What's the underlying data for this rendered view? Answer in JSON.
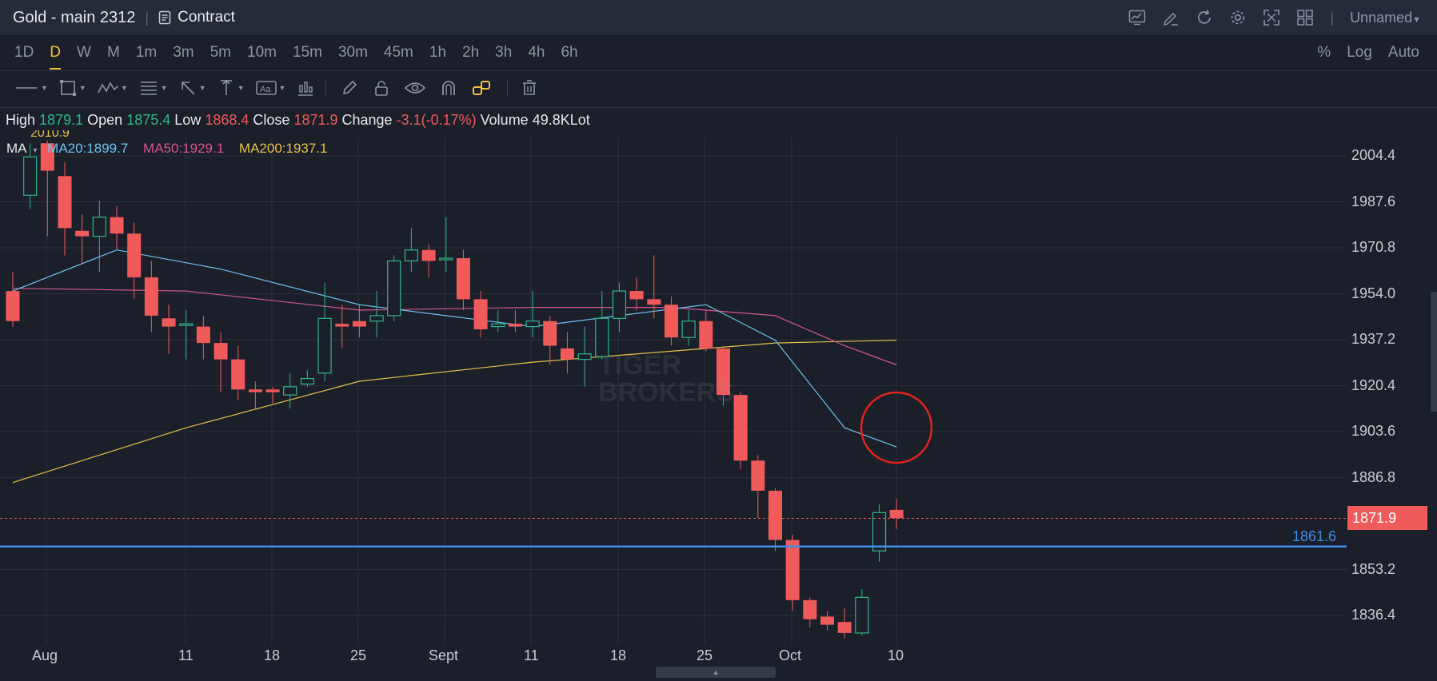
{
  "window": {
    "title": "Gold - main 2312",
    "contract_label": "Contract",
    "layout_name": "Unnamed"
  },
  "toolbar_icons": [
    "chart-icon",
    "edit-icon",
    "refresh-icon",
    "settings-icon",
    "fullscreen-icon",
    "layout-grid-icon"
  ],
  "timeframes": {
    "items": [
      "1D",
      "D",
      "W",
      "M",
      "1m",
      "3m",
      "5m",
      "10m",
      "15m",
      "30m",
      "45m",
      "1h",
      "2h",
      "3h",
      "4h",
      "6h"
    ],
    "active": "D"
  },
  "scale_options": [
    "%",
    "Log",
    "Auto"
  ],
  "drawing_tools": [
    "line-tool-icon",
    "rectangle-tool-icon",
    "pattern-tool-icon",
    "fib-tool-icon",
    "arrow-tool-icon",
    "measure-tool-icon",
    "text-tool-icon",
    "indicator-tool-icon",
    "pencil-icon",
    "lock-icon",
    "eye-icon",
    "magnet-icon",
    "link-icon",
    "trash-icon"
  ],
  "ohlc": {
    "high_label": "High",
    "high": "1879.1",
    "open_label": "Open",
    "open": "1875.4",
    "low_label": "Low",
    "low": "1868.4",
    "close_label": "Close",
    "close": "1871.9",
    "change_label": "Change",
    "change": "-3.1(-0.17%)",
    "volume_label": "Volume",
    "volume": "49.8KLot"
  },
  "indicators": {
    "name": "MA",
    "ma20": "MA20:1899.7",
    "ma50": "MA50:1929.1",
    "ma200": "MA200:1937.1",
    "clipped_label": "2010.9"
  },
  "colors": {
    "up": "#2fb58b",
    "down": "#f05a5a",
    "ma20": "#6ec3f0",
    "ma50": "#d6548f",
    "ma200": "#e5c04a",
    "hline": "#3d8fe8",
    "accent": "#f0c23c"
  },
  "price_axis": [
    "2004.4",
    "1987.6",
    "1970.8",
    "1954.0",
    "1937.2",
    "1920.4",
    "1903.6",
    "1886.8",
    "1853.2",
    "1836.4"
  ],
  "current_price": "1871.9",
  "horizontal_line_price": "1861.6",
  "date_axis": [
    "Aug",
    "11",
    "18",
    "25",
    "Sept",
    "11",
    "18",
    "25",
    "Oct",
    "10"
  ],
  "watermark": [
    "TIGER",
    "BROKERS"
  ],
  "chart_data": {
    "type": "candlestick",
    "ylim": [
      1826,
      2010
    ],
    "candles": [
      [
        1955,
        1944,
        1962,
        1942
      ],
      [
        1990,
        2004,
        2009,
        1985
      ],
      [
        2009,
        1999,
        2010,
        1975
      ],
      [
        1997,
        1978,
        2002,
        1968
      ],
      [
        1977,
        1975,
        1983,
        1965
      ],
      [
        1975,
        1982,
        1988,
        1962
      ],
      [
        1982,
        1976,
        1986,
        1970
      ],
      [
        1976,
        1960,
        1980,
        1952
      ],
      [
        1960,
        1946,
        1966,
        1940
      ],
      [
        1945,
        1942,
        1950,
        1932
      ],
      [
        1943,
        1943,
        1948,
        1930
      ],
      [
        1942,
        1936,
        1946,
        1930
      ],
      [
        1936,
        1930,
        1940,
        1918
      ],
      [
        1930,
        1919,
        1935,
        1915
      ],
      [
        1919,
        1918,
        1922,
        1912
      ],
      [
        1919,
        1918,
        1920,
        1914
      ],
      [
        1917,
        1920,
        1925,
        1912
      ],
      [
        1921,
        1923,
        1926,
        1920
      ],
      [
        1925,
        1945,
        1958,
        1922
      ],
      [
        1943,
        1942,
        1950,
        1934
      ],
      [
        1944,
        1942,
        1950,
        1938
      ],
      [
        1944,
        1946,
        1955,
        1938
      ],
      [
        1946,
        1966,
        1968,
        1944
      ],
      [
        1966,
        1970,
        1978,
        1962
      ],
      [
        1970,
        1966,
        1972,
        1960
      ],
      [
        1967,
        1967,
        1982,
        1962
      ],
      [
        1967,
        1952,
        1970,
        1948
      ],
      [
        1952,
        1941,
        1955,
        1938
      ],
      [
        1942,
        1943,
        1948,
        1940
      ],
      [
        1943,
        1942,
        1948,
        1940
      ],
      [
        1942,
        1944,
        1955,
        1938
      ],
      [
        1944,
        1935,
        1946,
        1928
      ],
      [
        1934,
        1930,
        1940,
        1925
      ],
      [
        1930,
        1932,
        1942,
        1920
      ],
      [
        1931,
        1945,
        1955,
        1930
      ],
      [
        1945,
        1955,
        1958,
        1940
      ],
      [
        1955,
        1952,
        1960,
        1948
      ],
      [
        1952,
        1950,
        1968,
        1945
      ],
      [
        1950,
        1938,
        1953,
        1935
      ],
      [
        1938,
        1944,
        1948,
        1935
      ],
      [
        1944,
        1934,
        1948,
        1933
      ],
      [
        1934,
        1917,
        1935,
        1913
      ],
      [
        1917,
        1893,
        1918,
        1890
      ],
      [
        1893,
        1882,
        1895,
        1872
      ],
      [
        1882,
        1864,
        1883,
        1860
      ],
      [
        1864,
        1842,
        1866,
        1838
      ],
      [
        1842,
        1835,
        1843,
        1832
      ],
      [
        1836,
        1833,
        1838,
        1831
      ],
      [
        1834,
        1830,
        1839,
        1828
      ],
      [
        1830,
        1843,
        1846,
        1829
      ],
      [
        1860,
        1874,
        1877,
        1856
      ],
      [
        1875,
        1872,
        1879,
        1868
      ]
    ],
    "ma20": [
      [
        0,
        1955
      ],
      [
        6,
        1970
      ],
      [
        12,
        1963
      ],
      [
        20,
        1950
      ],
      [
        30,
        1942
      ],
      [
        40,
        1950
      ],
      [
        44,
        1937
      ],
      [
        48,
        1905
      ],
      [
        51,
        1898
      ]
    ],
    "ma50": [
      [
        0,
        1956
      ],
      [
        10,
        1955
      ],
      [
        20,
        1948
      ],
      [
        30,
        1949
      ],
      [
        38,
        1949
      ],
      [
        44,
        1946
      ],
      [
        48,
        1935
      ],
      [
        51,
        1928
      ]
    ],
    "ma200": [
      [
        0,
        1885
      ],
      [
        10,
        1905
      ],
      [
        20,
        1922
      ],
      [
        30,
        1929
      ],
      [
        38,
        1933
      ],
      [
        44,
        1936
      ],
      [
        51,
        1937
      ]
    ]
  }
}
